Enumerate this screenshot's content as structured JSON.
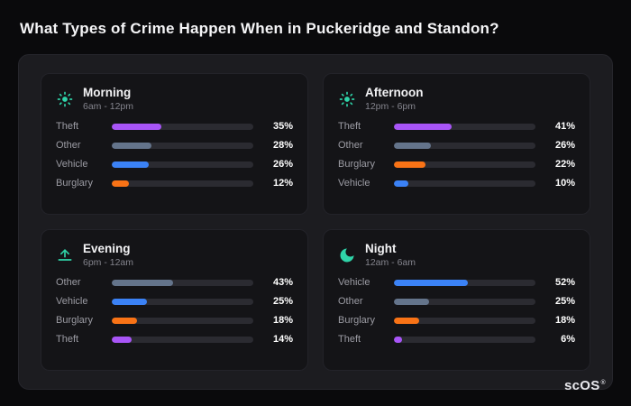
{
  "title": "What Types of Crime Happen When in Puckeridge and Standon?",
  "brand": {
    "name": "scOS",
    "reg": "®"
  },
  "colors": {
    "icon_accent": "#2fd3a8",
    "theft": "#a855f7",
    "other": "#64748b",
    "vehicle": "#3b82f6",
    "burglary": "#f97316",
    "bar_track": "#2b2b31"
  },
  "chart_data": [
    {
      "type": "bar",
      "title": "Morning",
      "subtitle": "6am - 12pm",
      "icon": "sun-icon",
      "xlim": [
        0,
        100
      ],
      "categories": [
        "Theft",
        "Other",
        "Vehicle",
        "Burglary"
      ],
      "values": [
        35,
        28,
        26,
        12
      ],
      "value_labels": [
        "35%",
        "28%",
        "26%",
        "12%"
      ],
      "colors": [
        "#a855f7",
        "#64748b",
        "#3b82f6",
        "#f97316"
      ]
    },
    {
      "type": "bar",
      "title": "Afternoon",
      "subtitle": "12pm - 6pm",
      "icon": "sun-icon",
      "xlim": [
        0,
        100
      ],
      "categories": [
        "Theft",
        "Other",
        "Burglary",
        "Vehicle"
      ],
      "values": [
        41,
        26,
        22,
        10
      ],
      "value_labels": [
        "41%",
        "26%",
        "22%",
        "10%"
      ],
      "colors": [
        "#a855f7",
        "#64748b",
        "#f97316",
        "#3b82f6"
      ]
    },
    {
      "type": "bar",
      "title": "Evening",
      "subtitle": "6pm - 12am",
      "icon": "sunset-icon",
      "xlim": [
        0,
        100
      ],
      "categories": [
        "Other",
        "Vehicle",
        "Burglary",
        "Theft"
      ],
      "values": [
        43,
        25,
        18,
        14
      ],
      "value_labels": [
        "43%",
        "25%",
        "18%",
        "14%"
      ],
      "colors": [
        "#64748b",
        "#3b82f6",
        "#f97316",
        "#a855f7"
      ]
    },
    {
      "type": "bar",
      "title": "Night",
      "subtitle": "12am - 6am",
      "icon": "moon-icon",
      "xlim": [
        0,
        100
      ],
      "categories": [
        "Vehicle",
        "Other",
        "Burglary",
        "Theft"
      ],
      "values": [
        52,
        25,
        18,
        6
      ],
      "value_labels": [
        "52%",
        "25%",
        "18%",
        "6%"
      ],
      "colors": [
        "#3b82f6",
        "#64748b",
        "#f97316",
        "#a855f7"
      ]
    }
  ]
}
